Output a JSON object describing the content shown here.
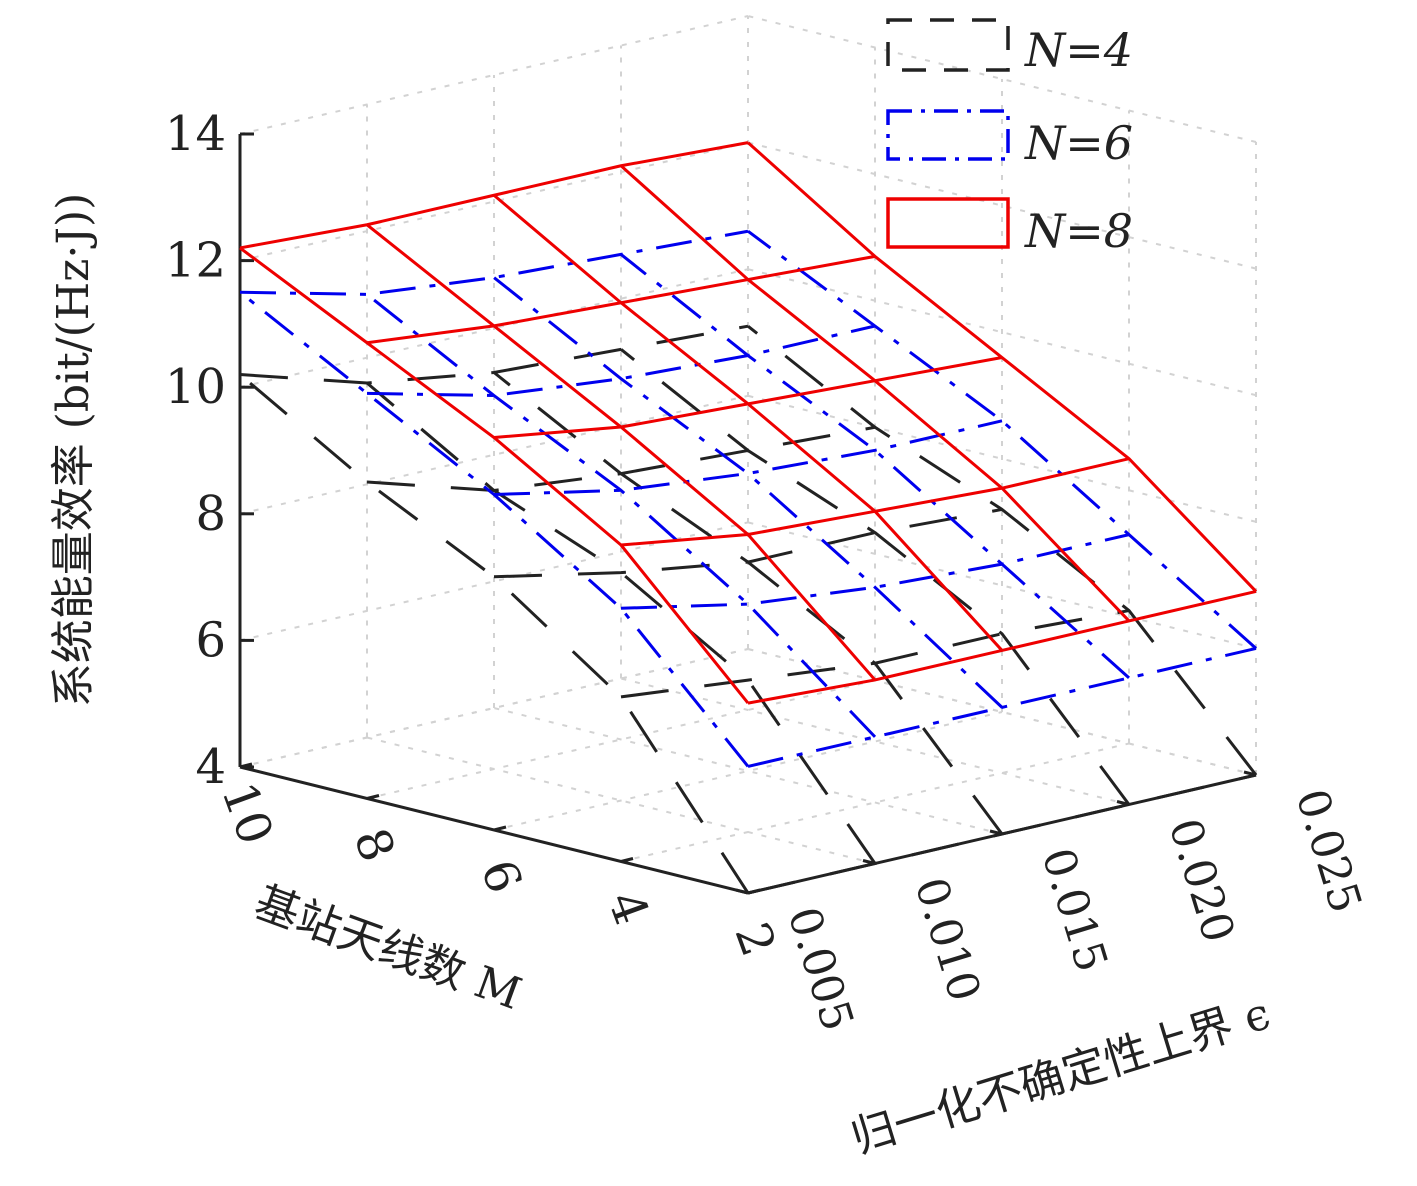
{
  "chart_data": {
    "type": "surface",
    "zlabel": "系统能量效率 (bit/(Hz·J))",
    "xlabel": "基站天线数 M",
    "ylabel": "归一化不确定性上界 ϵ",
    "zlim": [
      4,
      14
    ],
    "z_ticks": [
      "4",
      "6",
      "8",
      "10",
      "12",
      "14"
    ],
    "M": [
      2,
      4,
      6,
      8,
      10
    ],
    "M_ticks": [
      "2",
      "4",
      "6",
      "8",
      "10"
    ],
    "epsilon": [
      0.005,
      0.01,
      0.015,
      0.02,
      0.025
    ],
    "epsilon_ticks": [
      "0.005",
      "0.010",
      "0.015",
      "0.020",
      "0.025"
    ],
    "grid": true,
    "legend_position": "top-right",
    "series": [
      {
        "name": "N=4",
        "legend_label": "N=4",
        "color": "#222222",
        "style": "dashed",
        "values": [
          [
            4.0,
            4.0,
            4.0,
            4.0,
            4.0
          ],
          [
            6.6,
            6.4,
            6.2,
            6.2,
            6.1
          ],
          [
            8.0,
            7.6,
            7.3,
            7.3,
            7.2
          ],
          [
            9.0,
            8.4,
            8.2,
            8.1,
            8.0
          ],
          [
            10.2,
            9.6,
            9.3,
            9.2,
            9.1
          ]
        ]
      },
      {
        "name": "N=6",
        "legend_label": "N=6",
        "color": "#0000ee",
        "style": "dash-dot",
        "values": [
          [
            6.0,
            6.0,
            6.0,
            6.0,
            6.0
          ],
          [
            8.0,
            7.6,
            7.4,
            7.3,
            7.3
          ],
          [
            9.3,
            8.9,
            8.7,
            8.6,
            8.6
          ],
          [
            10.4,
            9.9,
            9.7,
            9.6,
            9.6
          ],
          [
            11.5,
            11.0,
            10.8,
            10.7,
            10.6
          ]
        ]
      },
      {
        "name": "N=8",
        "legend_label": "N=8",
        "color": "#ee0000",
        "style": "solid",
        "values": [
          [
            7.0,
            6.9,
            6.9,
            6.9,
            6.9
          ],
          [
            9.0,
            8.7,
            8.6,
            8.5,
            8.5
          ],
          [
            10.2,
            9.9,
            9.8,
            9.7,
            9.6
          ],
          [
            11.2,
            11.0,
            10.9,
            10.8,
            10.7
          ],
          [
            12.2,
            12.1,
            12.1,
            12.1,
            12.0
          ]
        ]
      }
    ]
  }
}
